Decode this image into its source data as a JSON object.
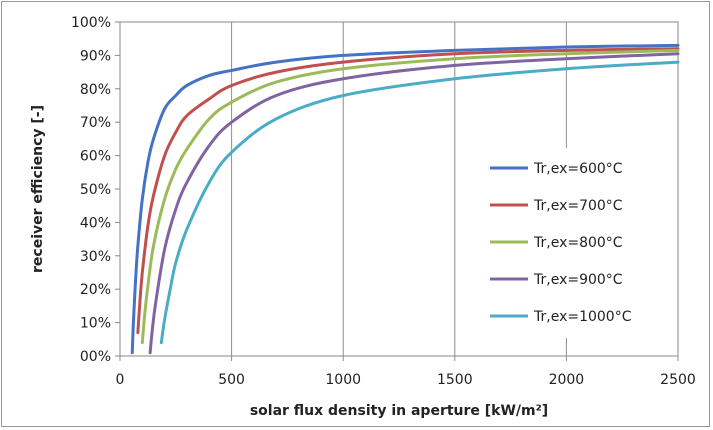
{
  "chart_data": {
    "type": "line",
    "title": "",
    "xlabel": "solar flux density in aperture [kW/m²]",
    "ylabel": "receiver efficiency [-]",
    "xlim": [
      0,
      2500
    ],
    "ylim": [
      0,
      1
    ],
    "x_ticks": [
      0,
      500,
      1000,
      1500,
      2000,
      2500
    ],
    "x_tick_labels": [
      "0",
      "500",
      "1000",
      "1500",
      "2000",
      "2500"
    ],
    "y_ticks": [
      0,
      0.1,
      0.2,
      0.3,
      0.4,
      0.5,
      0.6,
      0.7,
      0.8,
      0.9,
      1.0
    ],
    "y_tick_labels": [
      "00%",
      "10%",
      "20%",
      "30%",
      "40%",
      "50%",
      "60%",
      "70%",
      "80%",
      "90%",
      "100%"
    ],
    "grid": "vertical",
    "legend_position": "right",
    "series": [
      {
        "name": "Tr,ex=600°C",
        "color": "#4472C4",
        "points": [
          [
            55,
            0.01
          ],
          [
            60,
            0.1
          ],
          [
            70,
            0.23
          ],
          [
            80,
            0.33
          ],
          [
            100,
            0.47
          ],
          [
            125,
            0.58
          ],
          [
            150,
            0.65
          ],
          [
            200,
            0.74
          ],
          [
            250,
            0.78
          ],
          [
            300,
            0.81
          ],
          [
            400,
            0.84
          ],
          [
            500,
            0.855
          ],
          [
            700,
            0.88
          ],
          [
            1000,
            0.9
          ],
          [
            1500,
            0.915
          ],
          [
            2000,
            0.925
          ],
          [
            2500,
            0.93
          ]
        ]
      },
      {
        "name": "Tr,ex=700°C",
        "color": "#C0504D",
        "points": [
          [
            80,
            0.07
          ],
          [
            90,
            0.17
          ],
          [
            100,
            0.25
          ],
          [
            125,
            0.39
          ],
          [
            150,
            0.48
          ],
          [
            200,
            0.6
          ],
          [
            250,
            0.67
          ],
          [
            300,
            0.72
          ],
          [
            400,
            0.77
          ],
          [
            500,
            0.81
          ],
          [
            700,
            0.85
          ],
          [
            1000,
            0.88
          ],
          [
            1500,
            0.905
          ],
          [
            2000,
            0.915
          ],
          [
            2500,
            0.92
          ]
        ]
      },
      {
        "name": "Tr,ex=800°C",
        "color": "#9BBB59",
        "points": [
          [
            100,
            0.04
          ],
          [
            110,
            0.12
          ],
          [
            125,
            0.21
          ],
          [
            150,
            0.33
          ],
          [
            200,
            0.47
          ],
          [
            250,
            0.56
          ],
          [
            300,
            0.62
          ],
          [
            400,
            0.71
          ],
          [
            500,
            0.76
          ],
          [
            700,
            0.82
          ],
          [
            1000,
            0.86
          ],
          [
            1500,
            0.89
          ],
          [
            2000,
            0.905
          ],
          [
            2500,
            0.915
          ]
        ]
      },
      {
        "name": "Tr,ex=900°C",
        "color": "#8064A2",
        "points": [
          [
            135,
            0.01
          ],
          [
            145,
            0.08
          ],
          [
            160,
            0.16
          ],
          [
            200,
            0.32
          ],
          [
            250,
            0.44
          ],
          [
            300,
            0.52
          ],
          [
            400,
            0.63
          ],
          [
            500,
            0.7
          ],
          [
            700,
            0.78
          ],
          [
            1000,
            0.83
          ],
          [
            1500,
            0.87
          ],
          [
            2000,
            0.89
          ],
          [
            2500,
            0.905
          ]
        ]
      },
      {
        "name": "Tr,ex=1000°C",
        "color": "#4BACC6",
        "points": [
          [
            185,
            0.04
          ],
          [
            200,
            0.11
          ],
          [
            225,
            0.2
          ],
          [
            250,
            0.28
          ],
          [
            300,
            0.38
          ],
          [
            400,
            0.52
          ],
          [
            500,
            0.61
          ],
          [
            700,
            0.71
          ],
          [
            1000,
            0.78
          ],
          [
            1500,
            0.83
          ],
          [
            2000,
            0.86
          ],
          [
            2500,
            0.88
          ]
        ]
      }
    ]
  }
}
